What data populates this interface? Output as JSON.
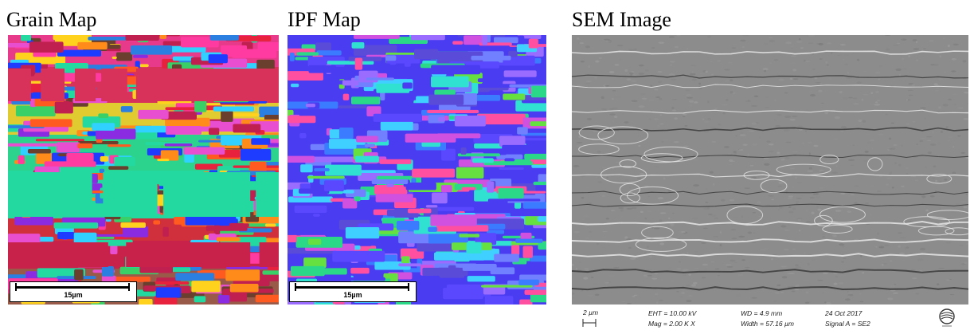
{
  "panels": {
    "grain": {
      "title": "Grain Map",
      "scale_label": "15µm"
    },
    "ipf": {
      "title": "IPF Map",
      "scale_label": "15µm"
    },
    "sem": {
      "title": "SEM Image",
      "info": {
        "scale_label": "2 µm",
        "eht": "EHT = 10.00 kV",
        "mag": "Mag =   2.00 K X",
        "wd": "WD =  4.9 mm",
        "width": "Width = 57.16 µm",
        "date": "24 Oct 2017",
        "signal": "Signal A = SE2"
      }
    }
  }
}
